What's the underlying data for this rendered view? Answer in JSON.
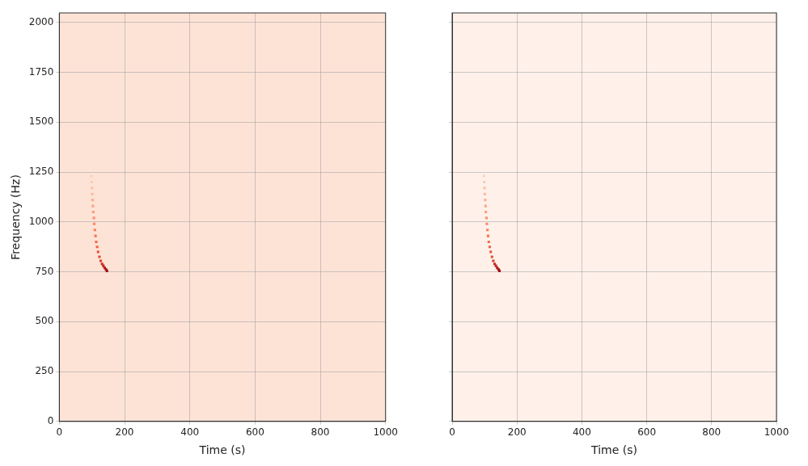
{
  "chart_data": [
    {
      "type": "scatter",
      "x_label": "Time (s)",
      "y_label": "Frequency (Hz)",
      "x": [
        98,
        99,
        100,
        101,
        102,
        103,
        104,
        106,
        107,
        109,
        111,
        113,
        116,
        119,
        123,
        127,
        131,
        135,
        139,
        143,
        146
      ],
      "values": [
        1230,
        1200,
        1170,
        1140,
        1110,
        1080,
        1050,
        1020,
        990,
        960,
        930,
        900,
        875,
        850,
        825,
        805,
        790,
        780,
        770,
        762,
        755
      ],
      "colors": [
        "#fcd0bd",
        "#fcc9b4",
        "#fcbfa7",
        "#fcb89f",
        "#fcae92",
        "#fca486",
        "#fc9a7b",
        "#fb9070",
        "#fb8666",
        "#fb7c5c",
        "#f77254",
        "#f5694d",
        "#f06045",
        "#ea563e",
        "#e34a33",
        "#d83b2a",
        "#cc2c22",
        "#c0221e",
        "#b71c1b",
        "#ab1518",
        "#a10f15"
      ],
      "marker": "square",
      "xlim": [
        0,
        1000
      ],
      "xticks": [
        0,
        200,
        400,
        600,
        800,
        1000
      ],
      "ylim": [
        0,
        2048
      ],
      "yticks": [
        0,
        250,
        500,
        750,
        1000,
        1250,
        1500,
        1750,
        2000
      ],
      "grid": true
    },
    {
      "type": "scatter",
      "x_label": "Time (s)",
      "x": [
        98,
        99,
        100,
        101,
        102,
        103,
        104,
        106,
        107,
        109,
        111,
        113,
        116,
        119,
        123,
        127,
        131,
        135,
        139,
        143,
        146
      ],
      "values": [
        1230,
        1200,
        1170,
        1140,
        1110,
        1080,
        1050,
        1020,
        990,
        960,
        930,
        900,
        875,
        850,
        825,
        805,
        790,
        780,
        770,
        762,
        755
      ],
      "colors": [
        "#fcd0bd",
        "#fcc9b4",
        "#fcbfa7",
        "#fcb89f",
        "#fcae92",
        "#fca486",
        "#fc9a7b",
        "#fb9070",
        "#fb8666",
        "#fb7c5c",
        "#f77254",
        "#f5694d",
        "#f06045",
        "#ea563e",
        "#e34a33",
        "#d83b2a",
        "#cc2c22",
        "#c0221e",
        "#b71c1b",
        "#ab1518",
        "#a10f15"
      ],
      "marker": "square",
      "xlim": [
        0,
        1000
      ],
      "xticks": [
        0,
        200,
        400,
        600,
        800,
        1000
      ],
      "ylim": [
        0,
        2048
      ],
      "yticks": [
        0,
        250,
        500,
        750,
        1000,
        1250,
        1500,
        1750,
        2000
      ],
      "grid": true,
      "tick_labels": "x"
    }
  ]
}
